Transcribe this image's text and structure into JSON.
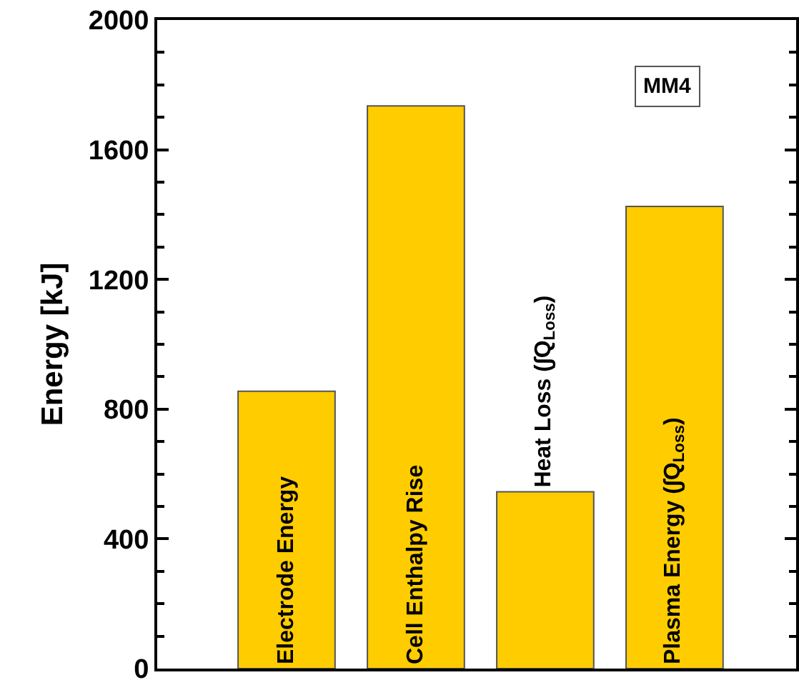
{
  "chart_data": {
    "type": "bar",
    "ylabel": "Energy [kJ]",
    "categories": [
      "Electrode Energy",
      "Cell Enthalpy Rise",
      "Heat Loss (∫Q$_{Loss}$)",
      "Plasma Energy (∫Q$_{Loss}$)"
    ],
    "values": [
      855,
      1735,
      545,
      1425
    ],
    "color": "#ffcc00",
    "ylim": [
      0,
      2000
    ],
    "yticks": [
      0,
      400,
      800,
      1200,
      1600,
      2000
    ],
    "tick_labels": "y",
    "legend": false,
    "annotations": [
      "MM4"
    ]
  }
}
